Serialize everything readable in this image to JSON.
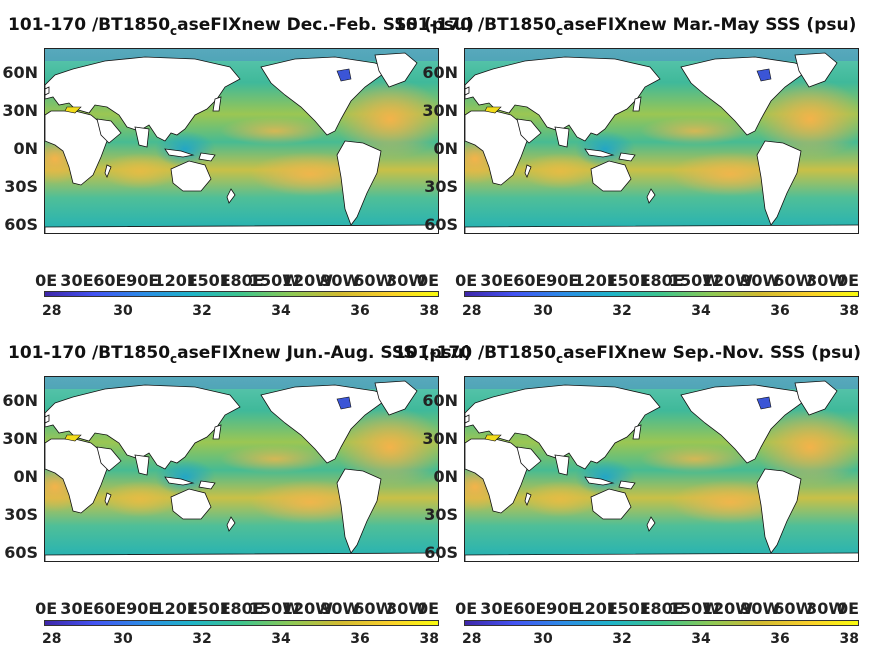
{
  "panels": [
    {
      "title_prefix": "101-170 /BT1850",
      "title_sub": "c",
      "title_suffix": "aseFIXnew Dec.-Feb. SSS (psu)"
    },
    {
      "title_prefix": "101-170 /BT1850",
      "title_sub": "c",
      "title_suffix": "aseFIXnew Mar.-May SSS (psu)"
    },
    {
      "title_prefix": "101-170 /BT1850",
      "title_sub": "c",
      "title_suffix": "aseFIXnew Jun.-Aug. SSS (psu)"
    },
    {
      "title_prefix": "101-170 /BT1850",
      "title_sub": "c",
      "title_suffix": "aseFIXnew Sep.-Nov. SSS (psu)"
    }
  ],
  "lat_ticks": [
    "60N",
    "30N",
    "0N",
    "30S",
    "60S"
  ],
  "lon_ticks": [
    "0E",
    "30E",
    "60E",
    "90E",
    "120E",
    "150E",
    "180E",
    "150W",
    "120W",
    "90W",
    "60W",
    "30W",
    "0E"
  ],
  "colorbar": {
    "ticks": [
      "28",
      "30",
      "32",
      "34",
      "36",
      "38"
    ],
    "min": 28,
    "max": 38,
    "colormap": "parula"
  },
  "colors": {
    "ocean_fresh": "#3ab5a0",
    "ocean_mid": "#8cc956",
    "ocean_salty": "#f3b34a",
    "land": "#ffffff",
    "arctic_fresh": "#3b55d6",
    "mediterranean": "#f2dc1c"
  }
}
